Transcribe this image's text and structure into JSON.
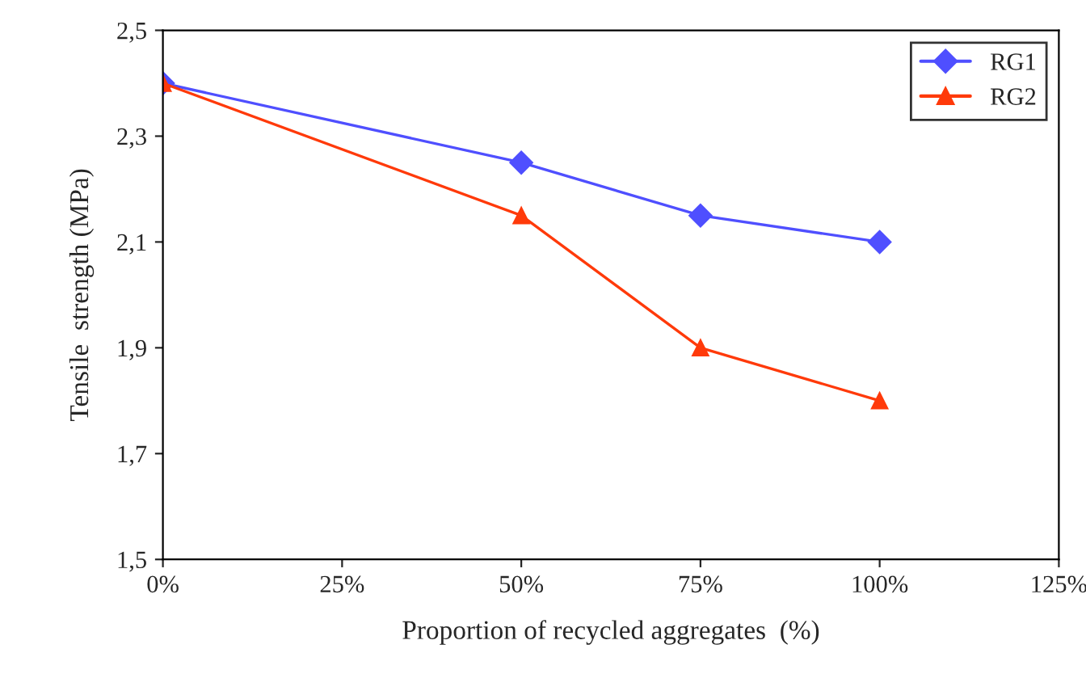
{
  "chart_data": {
    "type": "line",
    "xlabel": "Proportion of recycled aggregates  (%)",
    "ylabel": "Tensile  strength (MPa)",
    "x": [
      0,
      50,
      75,
      100
    ],
    "series": [
      {
        "name": "RG1",
        "color": "#4f4fff",
        "marker": "diamond",
        "values": [
          2.4,
          2.25,
          2.15,
          2.1
        ]
      },
      {
        "name": "RG2",
        "color": "#ff3a0a",
        "marker": "triangle",
        "values": [
          2.4,
          2.15,
          1.9,
          1.8
        ]
      }
    ],
    "xlim": [
      0,
      125
    ],
    "xticks": [
      {
        "value": 0,
        "label": "0%"
      },
      {
        "value": 25,
        "label": "25%"
      },
      {
        "value": 50,
        "label": "50%"
      },
      {
        "value": 75,
        "label": "75%"
      },
      {
        "value": 100,
        "label": "100%"
      },
      {
        "value": 125,
        "label": "125%"
      }
    ],
    "ylim": [
      1.5,
      2.5
    ],
    "yticks": [
      {
        "value": 1.5,
        "label": "1,5"
      },
      {
        "value": 1.7,
        "label": "1,7"
      },
      {
        "value": 1.9,
        "label": "1,9"
      },
      {
        "value": 2.1,
        "label": "2,1"
      },
      {
        "value": 2.3,
        "label": "2,3"
      },
      {
        "value": 2.5,
        "label": "2,5"
      }
    ],
    "grid": false,
    "legend": "top right",
    "line_style": "solid"
  }
}
